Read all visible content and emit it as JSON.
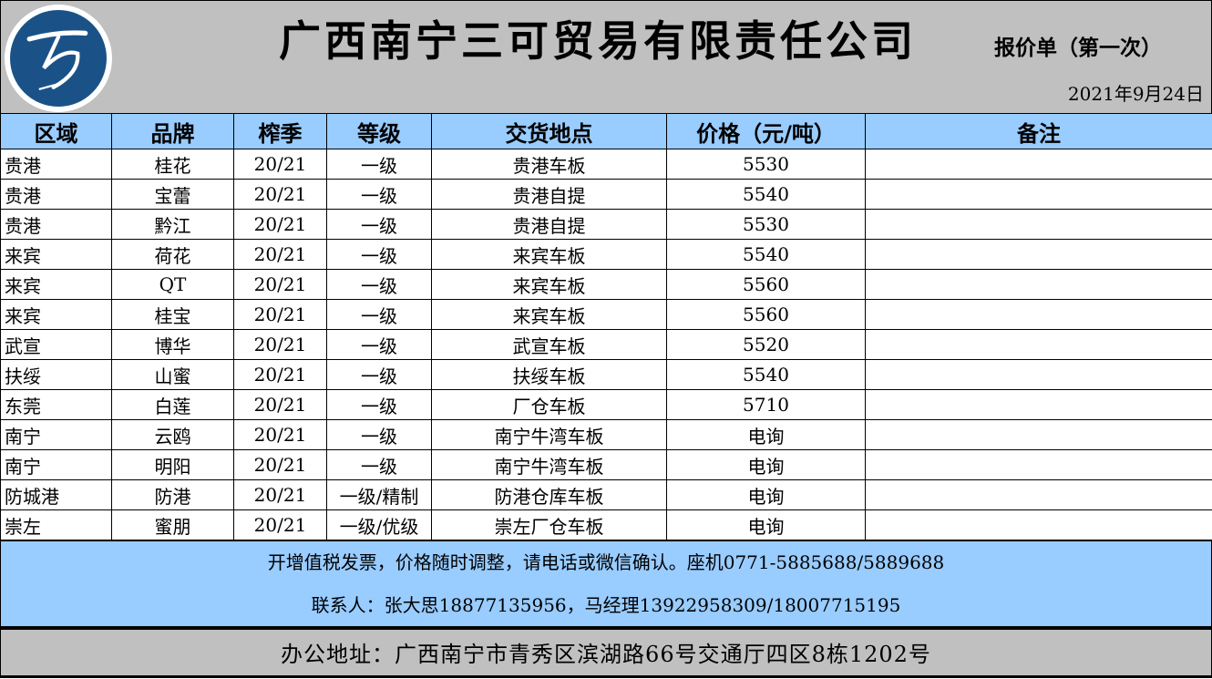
{
  "header": {
    "company": "广西南宁三可贸易有限责任公司",
    "subtitle": "报价单（第一次）",
    "date": "2021年9月24日",
    "logo_text": "万"
  },
  "colors": {
    "header_bg": "#c0c0c0",
    "table_header_bg": "#99ccff",
    "logo_blue": "#1a5288"
  },
  "table": {
    "columns": [
      "区域",
      "品牌",
      "榨季",
      "等级",
      "交货地点",
      "价格（元/吨）",
      "备注"
    ],
    "rows": [
      [
        "贵港",
        "桂花",
        "20/21",
        "一级",
        "贵港车板",
        "5530",
        ""
      ],
      [
        "贵港",
        "宝蕾",
        "20/21",
        "一级",
        "贵港自提",
        "5540",
        ""
      ],
      [
        "贵港",
        "黔江",
        "20/21",
        "一级",
        "贵港自提",
        "5530",
        ""
      ],
      [
        "来宾",
        "荷花",
        "20/21",
        "一级",
        "来宾车板",
        "5540",
        ""
      ],
      [
        "来宾",
        "QT",
        "20/21",
        "一级",
        "来宾车板",
        "5560",
        ""
      ],
      [
        "来宾",
        "桂宝",
        "20/21",
        "一级",
        "来宾车板",
        "5560",
        ""
      ],
      [
        "武宣",
        "博华",
        "20/21",
        "一级",
        "武宣车板",
        "5520",
        ""
      ],
      [
        "扶绥",
        "山蜜",
        "20/21",
        "一级",
        "扶绥车板",
        "5540",
        ""
      ],
      [
        "东莞",
        "白莲",
        "20/21",
        "一级",
        "厂仓车板",
        "5710",
        ""
      ],
      [
        "南宁",
        "云鸥",
        "20/21",
        "一级",
        "南宁牛湾车板",
        "电询",
        ""
      ],
      [
        "南宁",
        "明阳",
        "20/21",
        "一级",
        "南宁牛湾车板",
        "电询",
        ""
      ],
      [
        "防城港",
        "防港",
        "20/21",
        "一级/精制",
        "防港仓库车板",
        "电询",
        ""
      ],
      [
        "崇左",
        "蜜朋",
        "20/21",
        "一级/优级",
        "崇左厂仓车板",
        "电询",
        ""
      ]
    ]
  },
  "notes": {
    "line1": "开增值税发票，价格随时调整，请电话或微信确认。座机0771-5885688/5889688",
    "line2": "联系人：张大思18877135956，马经理13922958309/18007715195"
  },
  "address": "办公地址：广西南宁市青秀区滨湖路66号交通厅四区8栋1202号"
}
